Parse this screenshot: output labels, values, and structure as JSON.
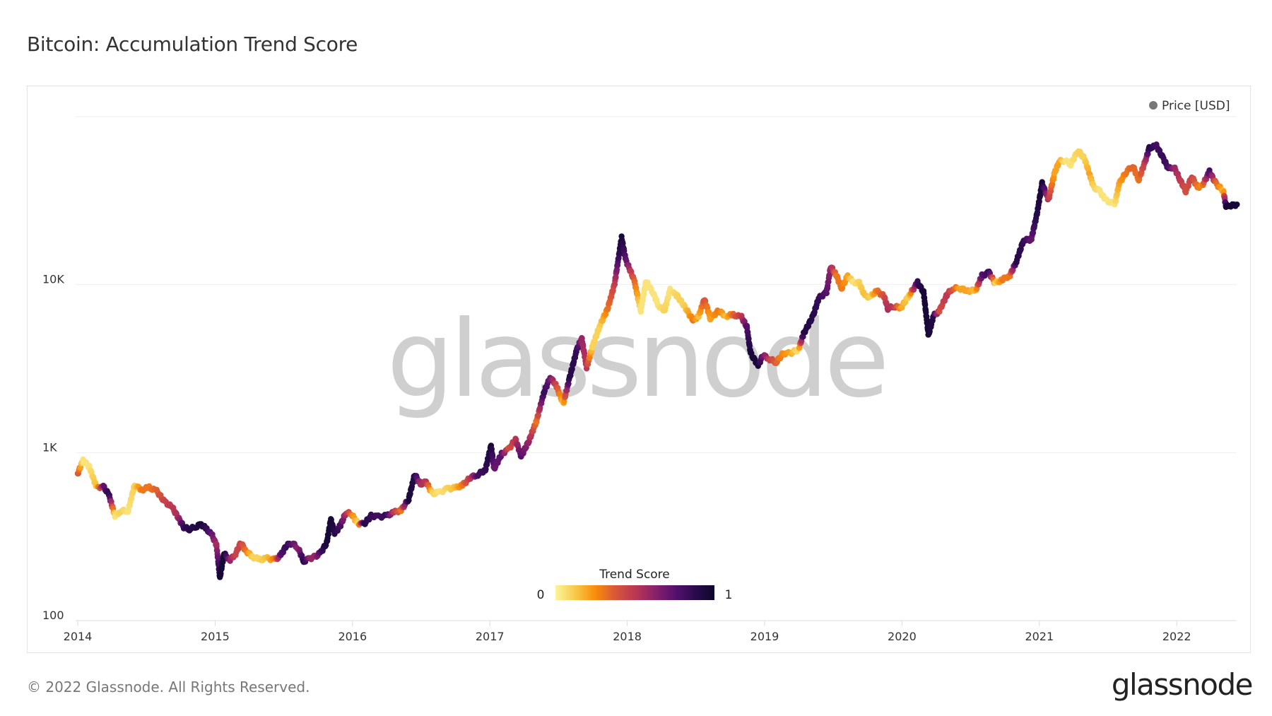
{
  "title": "Bitcoin: Accumulation Trend Score",
  "footer": {
    "copyright": "© 2022 Glassnode. All Rights Reserved.",
    "logo": "glassnode"
  },
  "watermark": "glassnode",
  "chart_data": {
    "type": "scatter",
    "title": "Bitcoin: Accumulation Trend Score",
    "yscale": "log",
    "ylim": [
      100,
      100000
    ],
    "y_ticks": [
      {
        "value": 100,
        "label": "100"
      },
      {
        "value": 1000,
        "label": "1K"
      },
      {
        "value": 10000,
        "label": "10K"
      },
      {
        "value": 100000,
        "label": ""
      }
    ],
    "x_ticks": [
      "2014",
      "2015",
      "2016",
      "2017",
      "2018",
      "2019",
      "2020",
      "2021",
      "2022"
    ],
    "xlim": [
      "2014-01-01",
      "2022-06-15"
    ],
    "grid": true,
    "legend": {
      "label": "Price [USD]",
      "marker_color": "#777777",
      "placement": "top-right"
    },
    "colorbar": {
      "title": "Trend Score",
      "min_label": "0",
      "max_label": "1",
      "placement": "bottom-center",
      "colors": [
        "#fcf49c",
        "#f7c948",
        "#f98c0a",
        "#d9573a",
        "#bc3754",
        "#8a226a",
        "#57106e",
        "#2b0b4f",
        "#0d0829"
      ]
    },
    "series": [
      {
        "name": "Price [USD]",
        "columns": [
          "date",
          "price",
          "trend_score"
        ],
        "points": [
          [
            "2014-01-01",
            750,
            0.4
          ],
          [
            "2014-01-15",
            900,
            0.05
          ],
          [
            "2014-02-01",
            820,
            0.05
          ],
          [
            "2014-02-20",
            620,
            0.15
          ],
          [
            "2014-03-10",
            630,
            0.7
          ],
          [
            "2014-03-25",
            560,
            0.9
          ],
          [
            "2014-04-10",
            420,
            0.05
          ],
          [
            "2014-04-25",
            450,
            0.1
          ],
          [
            "2014-05-15",
            450,
            0.05
          ],
          [
            "2014-06-01",
            640,
            0.1
          ],
          [
            "2014-06-20",
            600,
            0.3
          ],
          [
            "2014-07-10",
            620,
            0.3
          ],
          [
            "2014-07-30",
            590,
            0.35
          ],
          [
            "2014-08-20",
            510,
            0.45
          ],
          [
            "2014-09-10",
            470,
            0.5
          ],
          [
            "2014-09-25",
            410,
            0.55
          ],
          [
            "2014-10-10",
            360,
            0.85
          ],
          [
            "2014-10-25",
            350,
            0.9
          ],
          [
            "2014-11-10",
            360,
            0.9
          ],
          [
            "2014-11-25",
            375,
            0.95
          ],
          [
            "2014-12-10",
            350,
            0.85
          ],
          [
            "2014-12-25",
            320,
            0.7
          ],
          [
            "2015-01-05",
            280,
            0.55
          ],
          [
            "2015-01-14",
            180,
            0.95
          ],
          [
            "2015-01-25",
            250,
            0.95
          ],
          [
            "2015-02-10",
            230,
            0.6
          ],
          [
            "2015-02-25",
            250,
            0.45
          ],
          [
            "2015-03-10",
            290,
            0.45
          ],
          [
            "2015-03-25",
            260,
            0.3
          ],
          [
            "2015-04-10",
            240,
            0.1
          ],
          [
            "2015-04-30",
            230,
            0.1
          ],
          [
            "2015-05-20",
            235,
            0.15
          ],
          [
            "2015-06-10",
            230,
            0.3
          ],
          [
            "2015-06-25",
            245,
            0.75
          ],
          [
            "2015-07-10",
            280,
            0.85
          ],
          [
            "2015-07-25",
            290,
            0.75
          ],
          [
            "2015-08-10",
            270,
            0.6
          ],
          [
            "2015-08-25",
            225,
            0.9
          ],
          [
            "2015-09-10",
            235,
            0.6
          ],
          [
            "2015-09-25",
            240,
            0.6
          ],
          [
            "2015-10-10",
            255,
            0.8
          ],
          [
            "2015-10-25",
            290,
            0.95
          ],
          [
            "2015-11-05",
            400,
            0.95
          ],
          [
            "2015-11-15",
            330,
            0.9
          ],
          [
            "2015-12-01",
            370,
            0.8
          ],
          [
            "2015-12-15",
            440,
            0.55
          ],
          [
            "2015-12-30",
            430,
            0.3
          ],
          [
            "2016-01-15",
            380,
            0.1
          ],
          [
            "2016-02-01",
            375,
            0.9
          ],
          [
            "2016-02-20",
            420,
            0.85
          ],
          [
            "2016-03-10",
            415,
            0.8
          ],
          [
            "2016-04-01",
            420,
            0.85
          ],
          [
            "2016-04-20",
            440,
            0.5
          ],
          [
            "2016-05-10",
            455,
            0.3
          ],
          [
            "2016-05-30",
            530,
            0.95
          ],
          [
            "2016-06-15",
            740,
            0.9
          ],
          [
            "2016-06-30",
            650,
            0.55
          ],
          [
            "2016-07-15",
            670,
            0.5
          ],
          [
            "2016-08-01",
            570,
            0.1
          ],
          [
            "2016-08-20",
            580,
            0.05
          ],
          [
            "2016-09-10",
            610,
            0.1
          ],
          [
            "2016-10-01",
            615,
            0.15
          ],
          [
            "2016-10-20",
            640,
            0.3
          ],
          [
            "2016-11-10",
            710,
            0.5
          ],
          [
            "2016-11-30",
            740,
            0.8
          ],
          [
            "2016-12-20",
            790,
            0.85
          ],
          [
            "2017-01-04",
            1100,
            0.95
          ],
          [
            "2017-01-12",
            800,
            0.7
          ],
          [
            "2017-02-01",
            980,
            0.75
          ],
          [
            "2017-02-20",
            1050,
            0.4
          ],
          [
            "2017-03-10",
            1200,
            0.5
          ],
          [
            "2017-03-25",
            950,
            0.75
          ],
          [
            "2017-04-15",
            1180,
            0.6
          ],
          [
            "2017-05-05",
            1550,
            0.3
          ],
          [
            "2017-05-25",
            2300,
            0.85
          ],
          [
            "2017-06-10",
            2800,
            0.7
          ],
          [
            "2017-06-25",
            2550,
            0.45
          ],
          [
            "2017-07-15",
            1950,
            0.15
          ],
          [
            "2017-08-01",
            2800,
            0.9
          ],
          [
            "2017-08-20",
            4100,
            0.85
          ],
          [
            "2017-09-02",
            4800,
            0.6
          ],
          [
            "2017-09-15",
            3200,
            0.5
          ],
          [
            "2017-10-01",
            4300,
            0.1
          ],
          [
            "2017-10-20",
            5700,
            0.1
          ],
          [
            "2017-11-10",
            7200,
            0.3
          ],
          [
            "2017-11-28",
            10000,
            0.45
          ],
          [
            "2017-12-10",
            15000,
            0.85
          ],
          [
            "2017-12-17",
            19000,
            0.95
          ],
          [
            "2017-12-28",
            14000,
            0.75
          ],
          [
            "2018-01-10",
            12000,
            0.5
          ],
          [
            "2018-01-20",
            10500,
            0.35
          ],
          [
            "2018-02-06",
            7000,
            0.05
          ],
          [
            "2018-02-20",
            10500,
            0.05
          ],
          [
            "2018-03-10",
            9000,
            0.05
          ],
          [
            "2018-03-25",
            7500,
            0.05
          ],
          [
            "2018-04-10",
            7000,
            0.1
          ],
          [
            "2018-04-25",
            9300,
            0.05
          ],
          [
            "2018-05-15",
            8500,
            0.1
          ],
          [
            "2018-06-01",
            7500,
            0.1
          ],
          [
            "2018-06-25",
            6100,
            0.3
          ],
          [
            "2018-07-10",
            6500,
            0.15
          ],
          [
            "2018-07-25",
            8200,
            0.4
          ],
          [
            "2018-08-10",
            6300,
            0.2
          ],
          [
            "2018-09-01",
            7000,
            0.3
          ],
          [
            "2018-09-20",
            6500,
            0.15
          ],
          [
            "2018-10-10",
            6600,
            0.35
          ],
          [
            "2018-11-01",
            6400,
            0.5
          ],
          [
            "2018-11-15",
            5600,
            0.75
          ],
          [
            "2018-11-25",
            3900,
            0.95
          ],
          [
            "2018-12-15",
            3300,
            0.95
          ],
          [
            "2018-12-28",
            3800,
            0.7
          ],
          [
            "2019-01-15",
            3600,
            0.45
          ],
          [
            "2019-02-01",
            3450,
            0.35
          ],
          [
            "2019-02-20",
            3900,
            0.25
          ],
          [
            "2019-03-10",
            3900,
            0.2
          ],
          [
            "2019-04-01",
            4100,
            0.05
          ],
          [
            "2019-04-15",
            5100,
            0.9
          ],
          [
            "2019-05-10",
            6500,
            0.9
          ],
          [
            "2019-05-25",
            8300,
            0.85
          ],
          [
            "2019-06-15",
            9000,
            0.75
          ],
          [
            "2019-06-26",
            12800,
            0.6
          ],
          [
            "2019-07-10",
            11500,
            0.3
          ],
          [
            "2019-07-25",
            9500,
            0.3
          ],
          [
            "2019-08-10",
            11300,
            0.2
          ],
          [
            "2019-08-25",
            10300,
            0.05
          ],
          [
            "2019-09-10",
            10200,
            0.1
          ],
          [
            "2019-09-25",
            8500,
            0.15
          ],
          [
            "2019-10-10",
            8500,
            0.1
          ],
          [
            "2019-10-26",
            9200,
            0.3
          ],
          [
            "2019-11-15",
            8500,
            0.4
          ],
          [
            "2019-11-25",
            7200,
            0.55
          ],
          [
            "2019-12-10",
            7400,
            0.5
          ],
          [
            "2019-12-30",
            7300,
            0.2
          ],
          [
            "2020-01-20",
            8600,
            0.1
          ],
          [
            "2020-02-12",
            10300,
            0.85
          ],
          [
            "2020-02-28",
            9000,
            0.95
          ],
          [
            "2020-03-12",
            5000,
            0.95
          ],
          [
            "2020-03-25",
            6500,
            0.9
          ],
          [
            "2020-04-10",
            7000,
            0.4
          ],
          [
            "2020-04-30",
            8700,
            0.5
          ],
          [
            "2020-05-15",
            9500,
            0.4
          ],
          [
            "2020-06-01",
            9500,
            0.2
          ],
          [
            "2020-06-25",
            9200,
            0.2
          ],
          [
            "2020-07-15",
            9200,
            0.15
          ],
          [
            "2020-08-01",
            11300,
            0.75
          ],
          [
            "2020-08-20",
            11800,
            0.85
          ],
          [
            "2020-09-05",
            10200,
            0.1
          ],
          [
            "2020-09-25",
            10700,
            0.3
          ],
          [
            "2020-10-15",
            11400,
            0.3
          ],
          [
            "2020-11-01",
            13800,
            0.9
          ],
          [
            "2020-11-20",
            18500,
            0.85
          ],
          [
            "2020-12-10",
            18500,
            0.7
          ],
          [
            "2020-12-25",
            26000,
            0.9
          ],
          [
            "2021-01-08",
            40000,
            0.95
          ],
          [
            "2021-01-25",
            32000,
            0.5
          ],
          [
            "2021-02-10",
            46000,
            0.2
          ],
          [
            "2021-02-22",
            54000,
            0.2
          ],
          [
            "2021-03-10",
            55000,
            0.05
          ],
          [
            "2021-03-25",
            52000,
            0.05
          ],
          [
            "2021-04-14",
            63000,
            0.1
          ],
          [
            "2021-05-01",
            56000,
            0.1
          ],
          [
            "2021-05-15",
            45000,
            0.2
          ],
          [
            "2021-05-25",
            38000,
            0.1
          ],
          [
            "2021-06-10",
            36000,
            0.05
          ],
          [
            "2021-06-25",
            32000,
            0.05
          ],
          [
            "2021-07-20",
            30000,
            0.05
          ],
          [
            "2021-08-01",
            40000,
            0.2
          ],
          [
            "2021-08-20",
            47000,
            0.3
          ],
          [
            "2021-09-06",
            51000,
            0.35
          ],
          [
            "2021-09-22",
            42000,
            0.3
          ],
          [
            "2021-10-10",
            55000,
            0.5
          ],
          [
            "2021-10-20",
            65000,
            0.9
          ],
          [
            "2021-11-08",
            67000,
            0.8
          ],
          [
            "2021-11-25",
            57000,
            0.85
          ],
          [
            "2021-12-10",
            49000,
            0.8
          ],
          [
            "2021-12-25",
            50000,
            0.6
          ],
          [
            "2022-01-10",
            42000,
            0.5
          ],
          [
            "2022-01-25",
            36000,
            0.4
          ],
          [
            "2022-02-10",
            44000,
            0.45
          ],
          [
            "2022-02-25",
            38000,
            0.3
          ],
          [
            "2022-03-10",
            39000,
            0.25
          ],
          [
            "2022-03-29",
            47000,
            0.8
          ],
          [
            "2022-04-15",
            40000,
            0.35
          ],
          [
            "2022-05-05",
            36000,
            0.15
          ],
          [
            "2022-05-12",
            29000,
            0.95
          ],
          [
            "2022-05-25",
            29500,
            0.95
          ],
          [
            "2022-06-10",
            30000,
            0.95
          ]
        ]
      }
    ]
  }
}
